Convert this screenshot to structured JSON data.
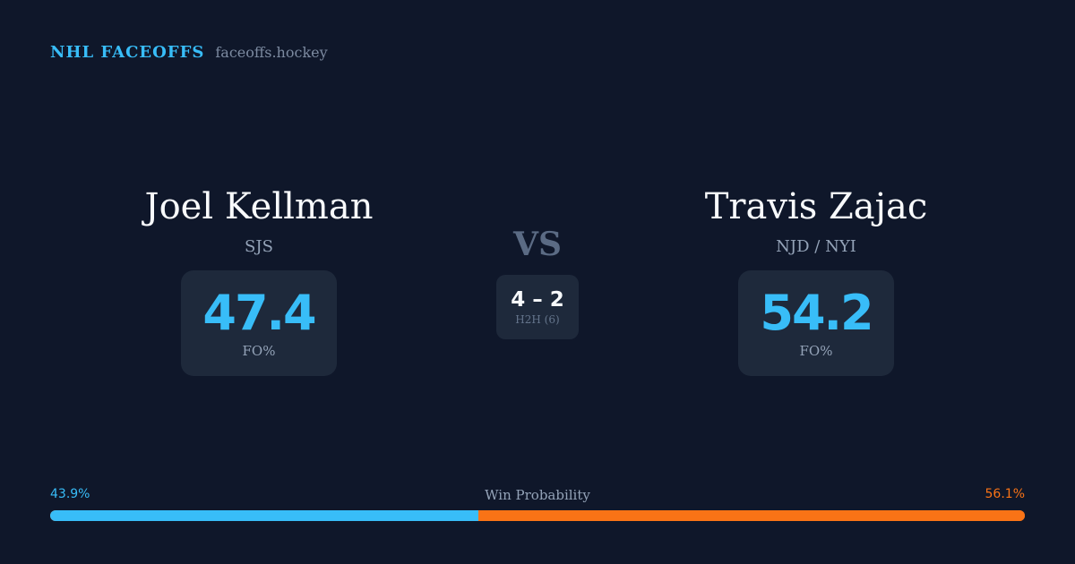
{
  "brand": {
    "title": "NHL FACEOFFS",
    "domain": "faceoffs.hockey"
  },
  "player1": {
    "name": "Joel Kellman",
    "team": "SJS",
    "fo_pct": "47.4",
    "fo_label": "FO%"
  },
  "player2": {
    "name": "Travis Zajac",
    "team": "NJD / NYI",
    "fo_pct": "54.2",
    "fo_label": "FO%"
  },
  "vs": "VS",
  "h2h": {
    "score": "4 – 2",
    "label": "H2H (6)"
  },
  "win_probability": {
    "label": "Win Probability",
    "player1_pct": "43.9%",
    "player2_pct": "56.1%",
    "player1_value": 43.9,
    "player2_value": 56.1
  },
  "colors": {
    "background": "#0f172a",
    "card": "#1e293b",
    "player1": "#38bdf8",
    "player2": "#f97316"
  }
}
